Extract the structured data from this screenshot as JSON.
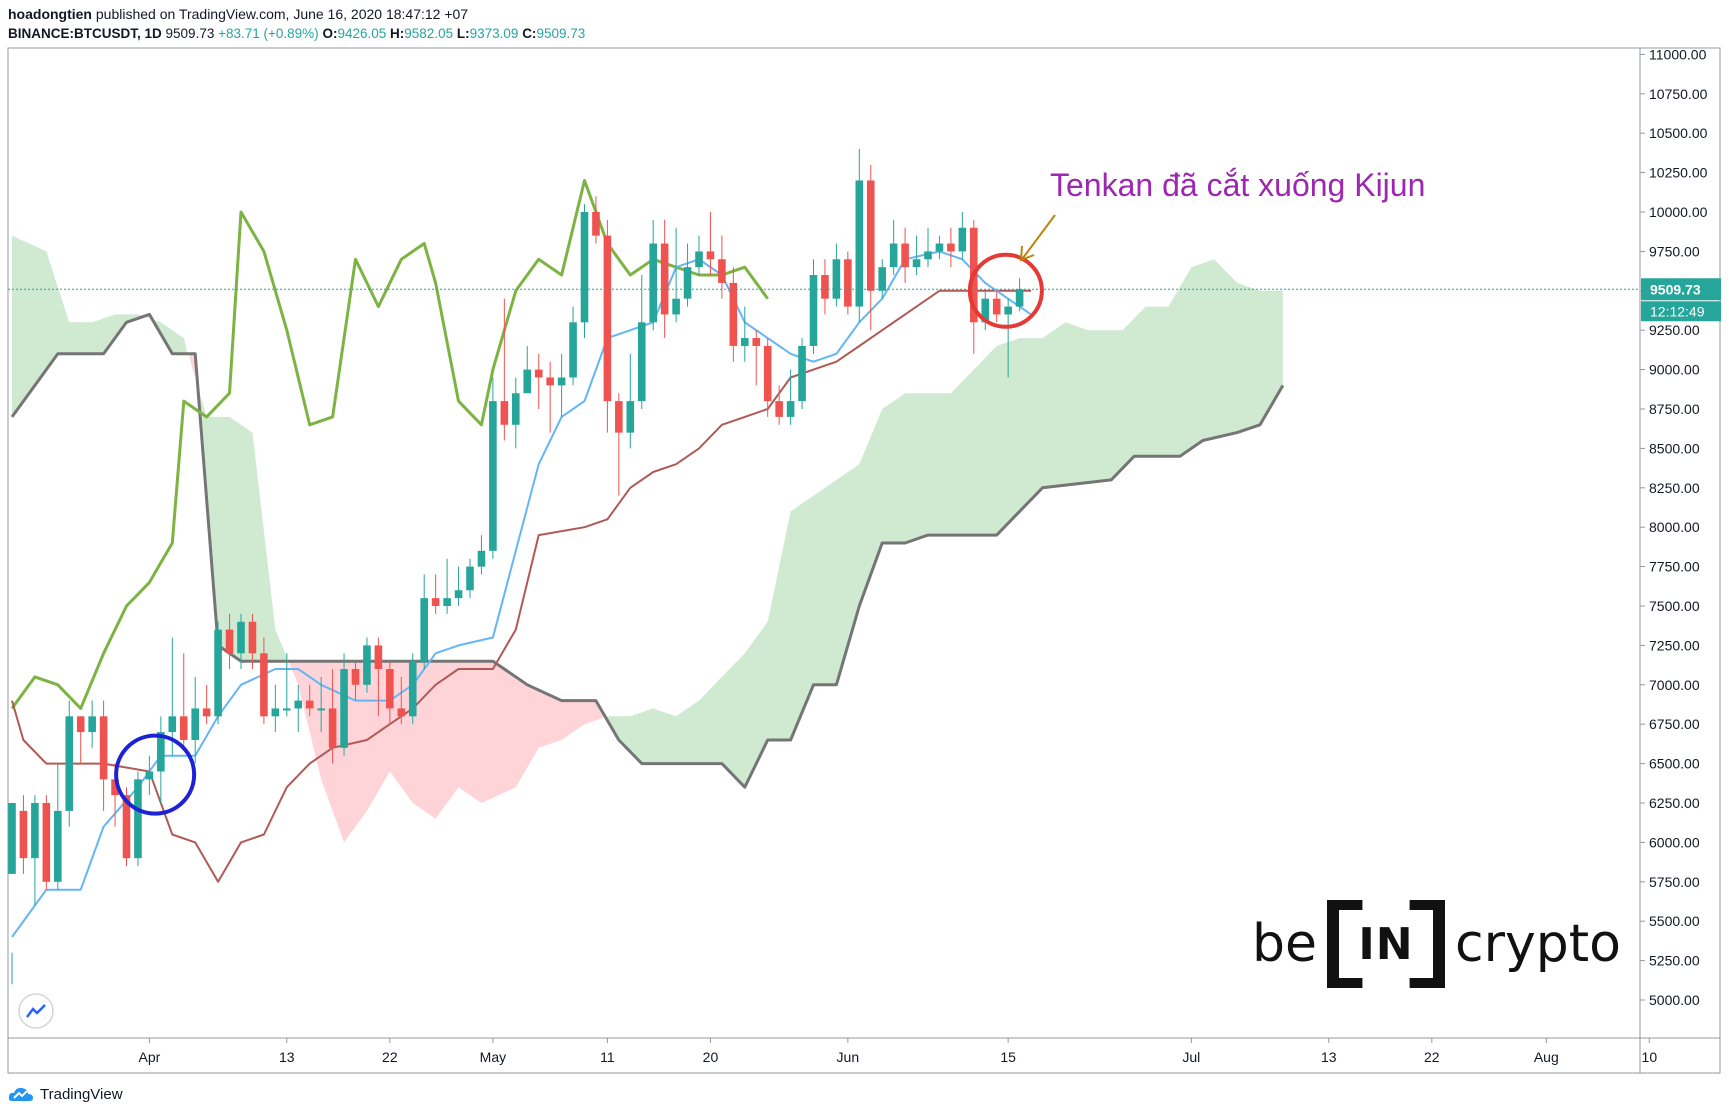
{
  "header": {
    "author": "hoadongtien",
    "published": "published on TradingView.com, June 16, 2020 18:47:12 +07",
    "symbol": "BINANCE:BTCUSDT, 1D",
    "last": "9509.73",
    "change": "+83.71 (+0.89%)",
    "o_label": "O:",
    "o_val": "9426.05",
    "h_label": "H:",
    "h_val": "9582.05",
    "l_label": "L:",
    "l_val": "9373.09",
    "c_label": "C:",
    "c_val": "9509.73"
  },
  "annotation": {
    "text": "Tenkan đã cắt xuống Kijun"
  },
  "brand": {
    "left": "be",
    "mid": "IN",
    "right": "crypto"
  },
  "footer": {
    "label": "TradingView"
  },
  "colors": {
    "up": "#26a69a",
    "down": "#ef5350",
    "tenkan": "#64b5f6",
    "kijun": "#b05a55",
    "chikou": "#7cb342",
    "span_b": "#757575",
    "cloud_bull": "#c8e6c9",
    "cloud_bear": "#ffcdd2",
    "annotation": "#9c27b0",
    "circle_red": "#e53935",
    "circle_blue": "#1e22d6"
  },
  "chart_data": {
    "type": "candlestick",
    "interval": "1D",
    "ylim": [
      4750,
      11100
    ],
    "y_ticks": [
      "5000.00",
      "5250.00",
      "5500.00",
      "5750.00",
      "6000.00",
      "6250.00",
      "6500.00",
      "6750.00",
      "7000.00",
      "7250.00",
      "7500.00",
      "7750.00",
      "8000.00",
      "8250.00",
      "8500.00",
      "8750.00",
      "9000.00",
      "9250.00",
      "9500.00",
      "9750.00",
      "10000.00",
      "10250.00",
      "10500.00",
      "10750.00",
      "11000.00"
    ],
    "x_ticks": [
      {
        "label": "Apr",
        "day": 12
      },
      {
        "label": "13",
        "day": 24
      },
      {
        "label": "22",
        "day": 33
      },
      {
        "label": "May",
        "day": 42
      },
      {
        "label": "11",
        "day": 52
      },
      {
        "label": "20",
        "day": 61
      },
      {
        "label": "Jun",
        "day": 73
      },
      {
        "label": "15",
        "day": 87
      },
      {
        "label": "Jul",
        "day": 103
      },
      {
        "label": "13",
        "day": 115
      },
      {
        "label": "22",
        "day": 124
      },
      {
        "label": "Aug",
        "day": 134
      },
      {
        "label": "10",
        "day": 143
      }
    ],
    "last_price_label": "9509.73",
    "countdown_label": "12:12:49",
    "last_price": 9509.73,
    "candles": [
      [
        5800,
        6250,
        5300,
        5100
      ],
      [
        6200,
        5900,
        6300,
        5800
      ],
      [
        5900,
        6250,
        6300,
        5600
      ],
      [
        6250,
        5750,
        6300,
        5700
      ],
      [
        5750,
        6200,
        6500,
        5700
      ],
      [
        6200,
        6800,
        6900,
        6100
      ],
      [
        6800,
        6700,
        6800,
        6500
      ],
      [
        6700,
        6800,
        6900,
        6600
      ],
      [
        6800,
        6400,
        6900,
        6200
      ],
      [
        6400,
        6300,
        6500,
        6100
      ],
      [
        6300,
        5900,
        6350,
        5850
      ],
      [
        5900,
        6400,
        6450,
        5850
      ],
      [
        6400,
        6450,
        6550,
        6300
      ],
      [
        6450,
        6700,
        6800,
        6250
      ],
      [
        6700,
        6800,
        7300,
        6550
      ],
      [
        6800,
        6650,
        7200,
        6600
      ],
      [
        6650,
        6850,
        7050,
        6500
      ],
      [
        6850,
        6800,
        7000,
        6750
      ],
      [
        6800,
        7350,
        7400,
        6750
      ],
      [
        7350,
        7200,
        7450,
        7100
      ],
      [
        7200,
        7400,
        7450,
        7100
      ],
      [
        7400,
        7200,
        7450,
        7100
      ],
      [
        7200,
        6800,
        7300,
        6750
      ],
      [
        6800,
        6850,
        7000,
        6700
      ],
      [
        6850,
        6850,
        7200,
        6800
      ],
      [
        6850,
        6900,
        7000,
        6700
      ],
      [
        6900,
        6850,
        7000,
        6800
      ],
      [
        6850,
        6850,
        7050,
        6700
      ],
      [
        6850,
        6600,
        7100,
        6500
      ],
      [
        6600,
        7100,
        7200,
        6550
      ],
      [
        7100,
        7000,
        7150,
        6900
      ],
      [
        7000,
        7250,
        7300,
        6950
      ],
      [
        7250,
        7100,
        7300,
        6800
      ],
      [
        7100,
        6850,
        7150,
        6750
      ],
      [
        6850,
        6800,
        7050,
        6750
      ],
      [
        6800,
        7150,
        7200,
        6750
      ],
      [
        7150,
        7550,
        7700,
        7100
      ],
      [
        7550,
        7500,
        7700,
        7450
      ],
      [
        7500,
        7550,
        7800,
        7450
      ],
      [
        7550,
        7600,
        7750,
        7500
      ],
      [
        7600,
        7750,
        7800,
        7550
      ],
      [
        7750,
        7850,
        7950,
        7700
      ],
      [
        7850,
        8800,
        8950,
        7800
      ],
      [
        8800,
        8650,
        9450,
        8550
      ],
      [
        8650,
        8850,
        8950,
        8500
      ],
      [
        8850,
        9000,
        9150,
        8850
      ],
      [
        9000,
        8950,
        9100,
        8750
      ],
      [
        8950,
        8900,
        9050,
        8600
      ],
      [
        8900,
        8950,
        9100,
        8700
      ],
      [
        8950,
        9300,
        9400,
        8900
      ],
      [
        9300,
        10000,
        10050,
        9200
      ],
      [
        10000,
        9850,
        10100,
        9800
      ],
      [
        9850,
        8800,
        9950,
        8600
      ],
      [
        8800,
        8600,
        8850,
        8200
      ],
      [
        8600,
        8800,
        9100,
        8500
      ],
      [
        8800,
        9300,
        9600,
        8750
      ],
      [
        9300,
        9800,
        9950,
        9250
      ],
      [
        9800,
        9350,
        9950,
        9200
      ],
      [
        9350,
        9450,
        9900,
        9300
      ],
      [
        9450,
        9650,
        9800,
        9400
      ],
      [
        9650,
        9750,
        9850,
        9600
      ],
      [
        9750,
        9700,
        10000,
        9600
      ],
      [
        9700,
        9550,
        9850,
        9450
      ],
      [
        9550,
        9150,
        9650,
        9050
      ],
      [
        9150,
        9200,
        9400,
        9050
      ],
      [
        9200,
        9150,
        9250,
        8900
      ],
      [
        9150,
        8800,
        9200,
        8700
      ],
      [
        8800,
        8700,
        8900,
        8650
      ],
      [
        8700,
        8800,
        9000,
        8650
      ],
      [
        8800,
        9150,
        9200,
        8750
      ],
      [
        9150,
        9600,
        9700,
        9100
      ],
      [
        9600,
        9450,
        9700,
        9350
      ],
      [
        9450,
        9700,
        9800,
        9400
      ],
      [
        9700,
        9400,
        9750,
        9350
      ],
      [
        9400,
        10200,
        10400,
        9300
      ],
      [
        10200,
        9500,
        10300,
        9250
      ],
      [
        9500,
        9650,
        9700,
        9450
      ],
      [
        9650,
        9800,
        9950,
        9600
      ],
      [
        9800,
        9650,
        9900,
        9550
      ],
      [
        9650,
        9700,
        9850,
        9600
      ],
      [
        9700,
        9750,
        9900,
        9650
      ],
      [
        9750,
        9800,
        9850,
        9700
      ],
      [
        9800,
        9750,
        9900,
        9650
      ],
      [
        9750,
        9900,
        10000,
        9700
      ],
      [
        9900,
        9300,
        9950,
        9100
      ],
      [
        9300,
        9450,
        9500,
        9250
      ],
      [
        9450,
        9350,
        9500,
        9300
      ],
      [
        9350,
        9400,
        9450,
        8950
      ],
      [
        9400,
        9510,
        9580,
        9370
      ]
    ],
    "tenkan": [
      [
        0,
        5400
      ],
      [
        3,
        5700
      ],
      [
        6,
        5700
      ],
      [
        8,
        6100
      ],
      [
        11,
        6350
      ],
      [
        13,
        6550
      ],
      [
        16,
        6550
      ],
      [
        18,
        6800
      ],
      [
        20,
        7000
      ],
      [
        23,
        7100
      ],
      [
        25,
        7100
      ],
      [
        27,
        7000
      ],
      [
        30,
        6900
      ],
      [
        33,
        6900
      ],
      [
        35,
        7000
      ],
      [
        37,
        7200
      ],
      [
        39,
        7250
      ],
      [
        42,
        7300
      ],
      [
        44,
        7850
      ],
      [
        46,
        8400
      ],
      [
        48,
        8700
      ],
      [
        50,
        8800
      ],
      [
        52,
        9200
      ],
      [
        54,
        9250
      ],
      [
        56,
        9300
      ],
      [
        58,
        9650
      ],
      [
        60,
        9700
      ],
      [
        62,
        9600
      ],
      [
        64,
        9300
      ],
      [
        66,
        9200
      ],
      [
        68,
        9100
      ],
      [
        70,
        9050
      ],
      [
        72,
        9100
      ],
      [
        74,
        9300
      ],
      [
        76,
        9450
      ],
      [
        78,
        9700
      ],
      [
        81,
        9750
      ],
      [
        83,
        9700
      ],
      [
        85,
        9550
      ],
      [
        87,
        9450
      ],
      [
        89,
        9350
      ]
    ],
    "kijun": [
      [
        0,
        6900
      ],
      [
        1,
        6650
      ],
      [
        3,
        6500
      ],
      [
        8,
        6500
      ],
      [
        12,
        6450
      ],
      [
        14,
        6050
      ],
      [
        16,
        6000
      ],
      [
        18,
        5750
      ],
      [
        20,
        6000
      ],
      [
        22,
        6050
      ],
      [
        24,
        6350
      ],
      [
        26,
        6500
      ],
      [
        28,
        6600
      ],
      [
        31,
        6650
      ],
      [
        33,
        6750
      ],
      [
        35,
        6850
      ],
      [
        37,
        7000
      ],
      [
        39,
        7100
      ],
      [
        42,
        7100
      ],
      [
        44,
        7350
      ],
      [
        46,
        7950
      ],
      [
        50,
        8000
      ],
      [
        52,
        8050
      ],
      [
        54,
        8250
      ],
      [
        56,
        8350
      ],
      [
        58,
        8400
      ],
      [
        60,
        8500
      ],
      [
        62,
        8650
      ],
      [
        64,
        8700
      ],
      [
        66,
        8750
      ],
      [
        68,
        8950
      ],
      [
        70,
        9000
      ],
      [
        72,
        9050
      ],
      [
        74,
        9150
      ],
      [
        76,
        9250
      ],
      [
        78,
        9350
      ],
      [
        81,
        9500
      ],
      [
        83,
        9500
      ],
      [
        86,
        9500
      ],
      [
        89,
        9500
      ]
    ],
    "chikou": [
      [
        0,
        6850
      ],
      [
        2,
        7050
      ],
      [
        4,
        7000
      ],
      [
        6,
        6850
      ],
      [
        8,
        7200
      ],
      [
        10,
        7500
      ],
      [
        12,
        7650
      ],
      [
        14,
        7900
      ],
      [
        15,
        8800
      ],
      [
        17,
        8700
      ],
      [
        19,
        8850
      ],
      [
        20,
        10000
      ],
      [
        22,
        9750
      ],
      [
        24,
        9250
      ],
      [
        26,
        8650
      ],
      [
        28,
        8700
      ],
      [
        30,
        9700
      ],
      [
        32,
        9400
      ],
      [
        34,
        9700
      ],
      [
        36,
        9800
      ],
      [
        37,
        9550
      ],
      [
        39,
        8800
      ],
      [
        41,
        8650
      ],
      [
        42,
        9000
      ],
      [
        44,
        9500
      ],
      [
        46,
        9700
      ],
      [
        48,
        9600
      ],
      [
        50,
        10200
      ],
      [
        52,
        9800
      ],
      [
        54,
        9600
      ],
      [
        56,
        9700
      ],
      [
        58,
        9650
      ],
      [
        60,
        9600
      ],
      [
        62,
        9600
      ],
      [
        64,
        9650
      ],
      [
        66,
        9450
      ]
    ],
    "span_a": [
      [
        0,
        9850
      ],
      [
        3,
        9750
      ],
      [
        5,
        9300
      ],
      [
        7,
        9300
      ],
      [
        9,
        9350
      ],
      [
        11,
        9350
      ],
      [
        13,
        9300
      ],
      [
        15,
        9200
      ],
      [
        17,
        8700
      ],
      [
        19,
        8700
      ],
      [
        21,
        8600
      ],
      [
        23,
        7350
      ],
      [
        25,
        7000
      ],
      [
        27,
        6400
      ],
      [
        29,
        6000
      ],
      [
        31,
        6200
      ],
      [
        33,
        6450
      ],
      [
        35,
        6250
      ],
      [
        37,
        6150
      ],
      [
        39,
        6350
      ],
      [
        41,
        6250
      ],
      [
        44,
        6350
      ],
      [
        46,
        6600
      ],
      [
        48,
        6650
      ],
      [
        50,
        6750
      ],
      [
        52,
        6800
      ],
      [
        54,
        6800
      ],
      [
        56,
        6850
      ],
      [
        58,
        6800
      ],
      [
        60,
        6900
      ],
      [
        62,
        7050
      ],
      [
        64,
        7200
      ],
      [
        66,
        7400
      ],
      [
        68,
        8100
      ],
      [
        70,
        8200
      ],
      [
        72,
        8300
      ],
      [
        74,
        8400
      ],
      [
        76,
        8750
      ],
      [
        78,
        8850
      ],
      [
        80,
        8850
      ],
      [
        82,
        8850
      ],
      [
        84,
        9000
      ],
      [
        86,
        9150
      ],
      [
        88,
        9200
      ],
      [
        90,
        9200
      ],
      [
        92,
        9300
      ],
      [
        94,
        9250
      ],
      [
        97,
        9250
      ],
      [
        99,
        9400
      ],
      [
        101,
        9400
      ],
      [
        103,
        9650
      ],
      [
        105,
        9700
      ],
      [
        107,
        9550
      ],
      [
        109,
        9500
      ],
      [
        111,
        9500
      ]
    ],
    "span_b": [
      [
        0,
        8700
      ],
      [
        2,
        8900
      ],
      [
        4,
        9100
      ],
      [
        8,
        9100
      ],
      [
        10,
        9300
      ],
      [
        12,
        9350
      ],
      [
        14,
        9100
      ],
      [
        16,
        9100
      ],
      [
        18,
        7250
      ],
      [
        20,
        7150
      ],
      [
        38,
        7150
      ],
      [
        42,
        7150
      ],
      [
        45,
        7000
      ],
      [
        48,
        6900
      ],
      [
        51,
        6900
      ],
      [
        53,
        6650
      ],
      [
        55,
        6500
      ],
      [
        59,
        6500
      ],
      [
        62,
        6500
      ],
      [
        64,
        6350
      ],
      [
        66,
        6650
      ],
      [
        68,
        6650
      ],
      [
        70,
        7000
      ],
      [
        72,
        7000
      ],
      [
        74,
        7500
      ],
      [
        76,
        7900
      ],
      [
        78,
        7900
      ],
      [
        80,
        7950
      ],
      [
        86,
        7950
      ],
      [
        88,
        8100
      ],
      [
        90,
        8250
      ],
      [
        96,
        8300
      ],
      [
        98,
        8450
      ],
      [
        102,
        8450
      ],
      [
        104,
        8550
      ],
      [
        107,
        8600
      ],
      [
        109,
        8650
      ],
      [
        111,
        8900
      ]
    ],
    "annotation_circles": [
      {
        "color": "red",
        "day": 86.8,
        "price": 9500
      },
      {
        "color": "blue",
        "day": 12.5,
        "price": 6430
      }
    ]
  }
}
